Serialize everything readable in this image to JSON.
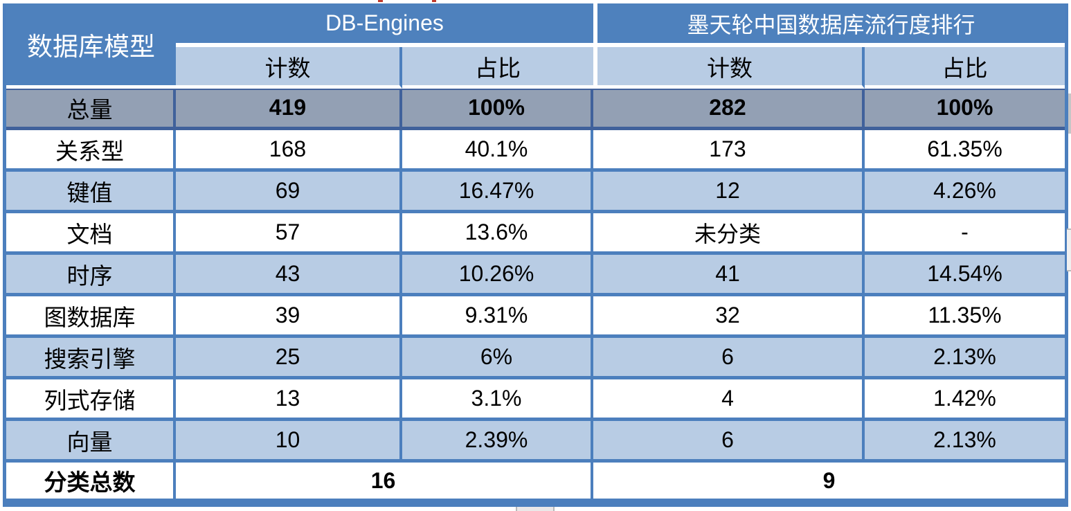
{
  "colors": {
    "header_blue": "#4E81BD",
    "subheader_light_blue": "#B8CCE4",
    "total_row_gray_blue": "#93A0B4",
    "alt_row_light_blue": "#B8CCE4",
    "gridline_blue": "#4C7FBD",
    "total_row_border_dark_blue": "#40619B",
    "header_text": "#FFFFFF",
    "body_text": "#000000"
  },
  "table": {
    "corner_header": "数据库模型",
    "groups": [
      {
        "label": "DB-Engines",
        "subheaders": [
          "计数",
          "占比"
        ]
      },
      {
        "label": "墨天轮中国数据库流行度排行",
        "subheaders": [
          "计数",
          "占比"
        ]
      }
    ],
    "total_row": {
      "label": "总量",
      "values": [
        "419",
        "100%",
        "282",
        "100%"
      ]
    },
    "rows": [
      {
        "label": "关系型",
        "values": [
          "168",
          "40.1%",
          "173",
          "61.35%"
        ]
      },
      {
        "label": "键值",
        "values": [
          "69",
          "16.47%",
          "12",
          "4.26%"
        ]
      },
      {
        "label": "文档",
        "values": [
          "57",
          "13.6%",
          "未分类",
          "-"
        ]
      },
      {
        "label": "时序",
        "values": [
          "43",
          "10.26%",
          "41",
          "14.54%"
        ]
      },
      {
        "label": "图数据库",
        "values": [
          "39",
          "9.31%",
          "32",
          "11.35%"
        ]
      },
      {
        "label": "搜索引擎",
        "values": [
          "25",
          "6%",
          "6",
          "2.13%"
        ]
      },
      {
        "label": "列式存储",
        "values": [
          "13",
          "3.1%",
          "4",
          "1.42%"
        ]
      },
      {
        "label": "向量",
        "values": [
          "10",
          "2.39%",
          "6",
          "2.13%"
        ]
      }
    ],
    "summary_row": {
      "label": "分类总数",
      "values": [
        "16",
        "9"
      ]
    }
  },
  "chart_data": {
    "type": "table",
    "title": "数据库模型分布：DB-Engines 与 墨天轮中国数据库流行度排行 对比",
    "columns": [
      "数据库模型",
      "DB-Engines 计数",
      "DB-Engines 占比",
      "墨天轮中国数据库流行度排行 计数",
      "墨天轮中国数据库流行度排行 占比"
    ],
    "rows": [
      [
        "总量",
        "419",
        "100%",
        "282",
        "100%"
      ],
      [
        "关系型",
        "168",
        "40.1%",
        "173",
        "61.35%"
      ],
      [
        "键值",
        "69",
        "16.47%",
        "12",
        "4.26%"
      ],
      [
        "文档",
        "57",
        "13.6%",
        "未分类",
        "-"
      ],
      [
        "时序",
        "43",
        "10.26%",
        "41",
        "14.54%"
      ],
      [
        "图数据库",
        "39",
        "9.31%",
        "32",
        "11.35%"
      ],
      [
        "搜索引擎",
        "25",
        "6%",
        "6",
        "2.13%"
      ],
      [
        "列式存储",
        "13",
        "3.1%",
        "4",
        "1.42%"
      ],
      [
        "向量",
        "10",
        "2.39%",
        "6",
        "2.13%"
      ],
      [
        "分类总数",
        "16",
        "",
        "9",
        ""
      ]
    ],
    "layout_hints": {
      "header_spans": "数据库模型 spans 2 header rows; each source spans 计数+占比; 分类总数 values span both columns of each source",
      "grid": "on",
      "row_shading": "alternating white / light blue; 总量 row gray-blue bold"
    }
  }
}
